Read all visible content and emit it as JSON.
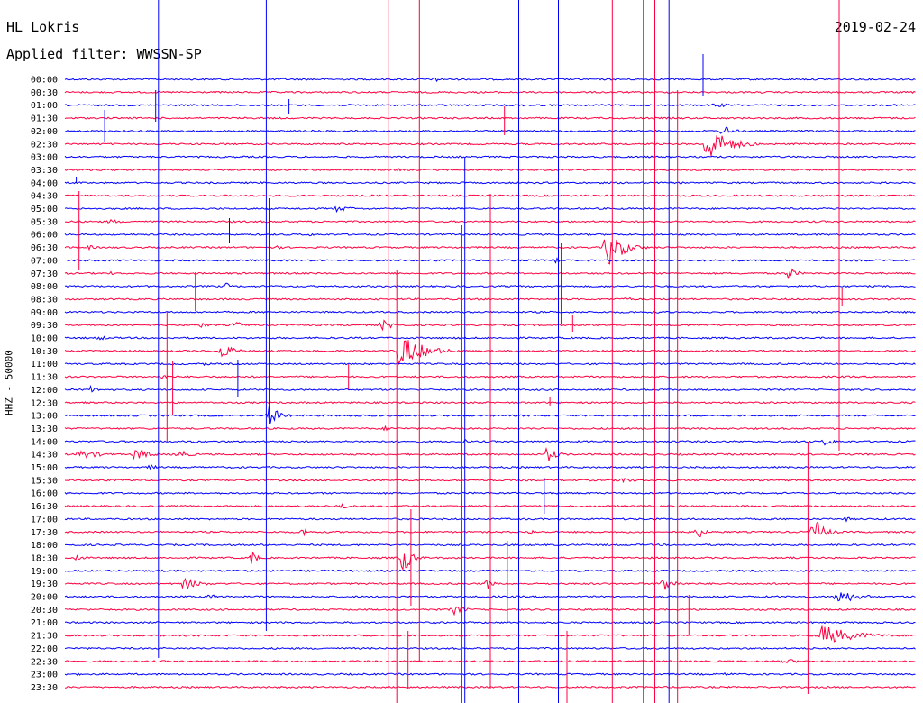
{
  "header": {
    "station": "HL Lokris",
    "date": "2019-02-24",
    "filter": "Applied filter: WWSSN-SP"
  },
  "chart_data": {
    "type": "line",
    "title": "HL Lokris",
    "ylabel": "HHZ - 50000",
    "rows": [
      "00:00",
      "00:30",
      "01:00",
      "01:30",
      "02:00",
      "02:30",
      "03:00",
      "03:30",
      "04:00",
      "04:30",
      "05:00",
      "05:30",
      "06:00",
      "06:30",
      "07:00",
      "07:30",
      "08:00",
      "08:30",
      "09:00",
      "09:30",
      "10:00",
      "10:30",
      "11:00",
      "11:30",
      "12:00",
      "12:30",
      "13:00",
      "13:30",
      "14:00",
      "14:30",
      "15:00",
      "15:30",
      "16:00",
      "16:30",
      "17:00",
      "17:30",
      "18:00",
      "18:30",
      "19:00",
      "19:30",
      "20:00",
      "20:30",
      "21:00",
      "21:30",
      "22:00",
      "22:30",
      "23:00",
      "23:30"
    ],
    "x_range_minutes": [
      0,
      30
    ],
    "colors": {
      "even": "#0000ff",
      "odd": "#ff0040"
    },
    "events": [
      {
        "row": 0,
        "x": 13.1,
        "amp": 4,
        "dur": 0.5
      },
      {
        "row": 2,
        "x": 22.9,
        "amp": 3,
        "dur": 1.5
      },
      {
        "row": 4,
        "x": 23.2,
        "amp": 7,
        "dur": 1
      },
      {
        "row": 5,
        "x": 22.6,
        "amp": 22,
        "dur": 2
      },
      {
        "row": 7,
        "x": 11.8,
        "amp": 2,
        "dur": 1
      },
      {
        "row": 10,
        "x": 9.6,
        "amp": 4,
        "dur": 1.5
      },
      {
        "row": 11,
        "x": 1.6,
        "amp": 3,
        "dur": 1
      },
      {
        "row": 12,
        "x": 8.6,
        "amp": 2,
        "dur": 1
      },
      {
        "row": 13,
        "x": 0.8,
        "amp": 3,
        "dur": 1
      },
      {
        "row": 13,
        "x": 7.5,
        "amp": 2,
        "dur": 1
      },
      {
        "row": 13,
        "x": 19.1,
        "amp": 24,
        "dur": 1.5
      },
      {
        "row": 14,
        "x": 17.3,
        "amp": 5,
        "dur": 0.5
      },
      {
        "row": 15,
        "x": 1.6,
        "amp": 2,
        "dur": 0.8
      },
      {
        "row": 15,
        "x": 25.5,
        "amp": 8,
        "dur": 0.8
      },
      {
        "row": 16,
        "x": 5.7,
        "amp": 4,
        "dur": 0.5
      },
      {
        "row": 17,
        "x": 19.8,
        "amp": 4,
        "dur": 0.5
      },
      {
        "row": 19,
        "x": 4.8,
        "amp": 3,
        "dur": 1
      },
      {
        "row": 19,
        "x": 6.0,
        "amp": 6,
        "dur": 0.6
      },
      {
        "row": 19,
        "x": 11.2,
        "amp": 6,
        "dur": 1.2
      },
      {
        "row": 20,
        "x": 1.2,
        "amp": 3,
        "dur": 1
      },
      {
        "row": 21,
        "x": 5.5,
        "amp": 9,
        "dur": 1.2
      },
      {
        "row": 21,
        "x": 11.8,
        "amp": 20,
        "dur": 2.2
      },
      {
        "row": 22,
        "x": 4.9,
        "amp": 2,
        "dur": 1
      },
      {
        "row": 23,
        "x": 3.4,
        "amp": 3,
        "dur": 0.8
      },
      {
        "row": 24,
        "x": 0.9,
        "amp": 4,
        "dur": 1
      },
      {
        "row": 26,
        "x": 7.2,
        "amp": 12,
        "dur": 1
      },
      {
        "row": 27,
        "x": 11.3,
        "amp": 3,
        "dur": 1
      },
      {
        "row": 28,
        "x": 4.5,
        "amp": 2,
        "dur": 0.8
      },
      {
        "row": 28,
        "x": 14.1,
        "amp": 4,
        "dur": 0.3
      },
      {
        "row": 28,
        "x": 26.8,
        "amp": 5,
        "dur": 1
      },
      {
        "row": 29,
        "x": 0.5,
        "amp": 6,
        "dur": 2
      },
      {
        "row": 29,
        "x": 2.5,
        "amp": 9,
        "dur": 1.2
      },
      {
        "row": 29,
        "x": 4.0,
        "amp": 6,
        "dur": 1
      },
      {
        "row": 29,
        "x": 17.0,
        "amp": 9,
        "dur": 1
      },
      {
        "row": 30,
        "x": 3.0,
        "amp": 3,
        "dur": 1
      },
      {
        "row": 31,
        "x": 19.6,
        "amp": 5,
        "dur": 1
      },
      {
        "row": 33,
        "x": 9.8,
        "amp": 5,
        "dur": 0.4
      },
      {
        "row": 34,
        "x": 27.5,
        "amp": 3,
        "dur": 0.8
      },
      {
        "row": 35,
        "x": 8.4,
        "amp": 6,
        "dur": 0.5
      },
      {
        "row": 35,
        "x": 16.4,
        "amp": 4,
        "dur": 0.5
      },
      {
        "row": 35,
        "x": 22.3,
        "amp": 12,
        "dur": 0.5
      },
      {
        "row": 35,
        "x": 26.4,
        "amp": 18,
        "dur": 1
      },
      {
        "row": 37,
        "x": 0.4,
        "amp": 4,
        "dur": 0.8
      },
      {
        "row": 37,
        "x": 6.6,
        "amp": 9,
        "dur": 0.5
      },
      {
        "row": 37,
        "x": 11.9,
        "amp": 20,
        "dur": 0.8
      },
      {
        "row": 39,
        "x": 4.2,
        "amp": 7,
        "dur": 1.5
      },
      {
        "row": 39,
        "x": 14.9,
        "amp": 7,
        "dur": 0.5
      },
      {
        "row": 39,
        "x": 21.1,
        "amp": 10,
        "dur": 1
      },
      {
        "row": 40,
        "x": 5.1,
        "amp": 3,
        "dur": 1
      },
      {
        "row": 40,
        "x": 27.2,
        "amp": 9,
        "dur": 2
      },
      {
        "row": 41,
        "x": 13.7,
        "amp": 6,
        "dur": 1.2
      },
      {
        "row": 43,
        "x": 26.7,
        "amp": 12,
        "dur": 3
      },
      {
        "row": 45,
        "x": 25.4,
        "amp": 4,
        "dur": 1
      },
      {
        "row": 46,
        "x": 23.3,
        "amp": 2,
        "dur": 1.5
      }
    ],
    "spikes": [
      {
        "x": 0.4,
        "y1": 196,
        "y2": 203,
        "color": "#0000ff"
      },
      {
        "x": 0.5,
        "y1": 212,
        "y2": 300,
        "color": "#ff0040"
      },
      {
        "x": 1.4,
        "y1": 122,
        "y2": 158,
        "color": "#0000ff"
      },
      {
        "x": 2.4,
        "y1": 76,
        "y2": 272,
        "color": "#ff0040"
      },
      {
        "x": 3.2,
        "y1": 100,
        "y2": 135,
        "color": "#0000ff"
      },
      {
        "x": 3.3,
        "y1": 0,
        "y2": 730,
        "color": "#0000ff"
      },
      {
        "x": 3.6,
        "y1": 346,
        "y2": 490,
        "color": "#ff0040"
      },
      {
        "x": 3.8,
        "y1": 400,
        "y2": 460,
        "color": "#ff0040"
      },
      {
        "x": 4.6,
        "y1": 302,
        "y2": 345,
        "color": "#ff0040"
      },
      {
        "x": 5.8,
        "y1": 242,
        "y2": 270,
        "color": "#0000ff"
      },
      {
        "x": 6.1,
        "y1": 399,
        "y2": 440,
        "color": "#0000ff"
      },
      {
        "x": 7.1,
        "y1": 0,
        "y2": 700,
        "color": "#0000ff"
      },
      {
        "x": 7.2,
        "y1": 220,
        "y2": 470,
        "color": "#0000ff"
      },
      {
        "x": 7.9,
        "y1": 110,
        "y2": 126,
        "color": "#0000ff"
      },
      {
        "x": 10.0,
        "y1": 404,
        "y2": 432,
        "color": "#ff0040"
      },
      {
        "x": 11.4,
        "y1": 0,
        "y2": 765,
        "color": "#ff0040"
      },
      {
        "x": 11.7,
        "y1": 300,
        "y2": 780,
        "color": "#ff0040"
      },
      {
        "x": 12.1,
        "y1": 700,
        "y2": 765,
        "color": "#ff0040"
      },
      {
        "x": 12.2,
        "y1": 565,
        "y2": 672,
        "color": "#ff0040"
      },
      {
        "x": 12.5,
        "y1": 0,
        "y2": 735,
        "color": "#ff0040"
      },
      {
        "x": 14.0,
        "y1": 250,
        "y2": 780,
        "color": "#ff0040"
      },
      {
        "x": 14.1,
        "y1": 175,
        "y2": 780,
        "color": "#0000ff"
      },
      {
        "x": 15.0,
        "y1": 215,
        "y2": 765,
        "color": "#ff0040"
      },
      {
        "x": 15.5,
        "y1": 118,
        "y2": 150,
        "color": "#ff0040"
      },
      {
        "x": 15.6,
        "y1": 600,
        "y2": 690,
        "color": "#ff0040"
      },
      {
        "x": 16.0,
        "y1": 0,
        "y2": 780,
        "color": "#0000ff"
      },
      {
        "x": 16.9,
        "y1": 530,
        "y2": 570,
        "color": "#0000ff"
      },
      {
        "x": 17.1,
        "y1": 440,
        "y2": 450,
        "color": "#ff0040"
      },
      {
        "x": 17.4,
        "y1": 0,
        "y2": 780,
        "color": "#0000ff"
      },
      {
        "x": 17.5,
        "y1": 270,
        "y2": 360,
        "color": "#0000ff"
      },
      {
        "x": 17.7,
        "y1": 700,
        "y2": 780,
        "color": "#ff0040"
      },
      {
        "x": 17.9,
        "y1": 350,
        "y2": 368,
        "color": "#ff0040"
      },
      {
        "x": 19.3,
        "y1": 0,
        "y2": 780,
        "color": "#ff0040"
      },
      {
        "x": 20.4,
        "y1": 0,
        "y2": 780,
        "color": "#0000ff"
      },
      {
        "x": 20.8,
        "y1": 0,
        "y2": 780,
        "color": "#ff0040"
      },
      {
        "x": 21.3,
        "y1": 0,
        "y2": 780,
        "color": "#0000ff"
      },
      {
        "x": 21.6,
        "y1": 100,
        "y2": 780,
        "color": "#ff0040"
      },
      {
        "x": 22.0,
        "y1": 660,
        "y2": 705,
        "color": "#ff0040"
      },
      {
        "x": 22.5,
        "y1": 60,
        "y2": 106,
        "color": "#0000ff"
      },
      {
        "x": 26.2,
        "y1": 490,
        "y2": 770,
        "color": "#ff0040"
      },
      {
        "x": 27.3,
        "y1": 0,
        "y2": 500,
        "color": "#ff0040"
      },
      {
        "x": 27.4,
        "y1": 320,
        "y2": 340,
        "color": "#ff0040"
      }
    ]
  }
}
